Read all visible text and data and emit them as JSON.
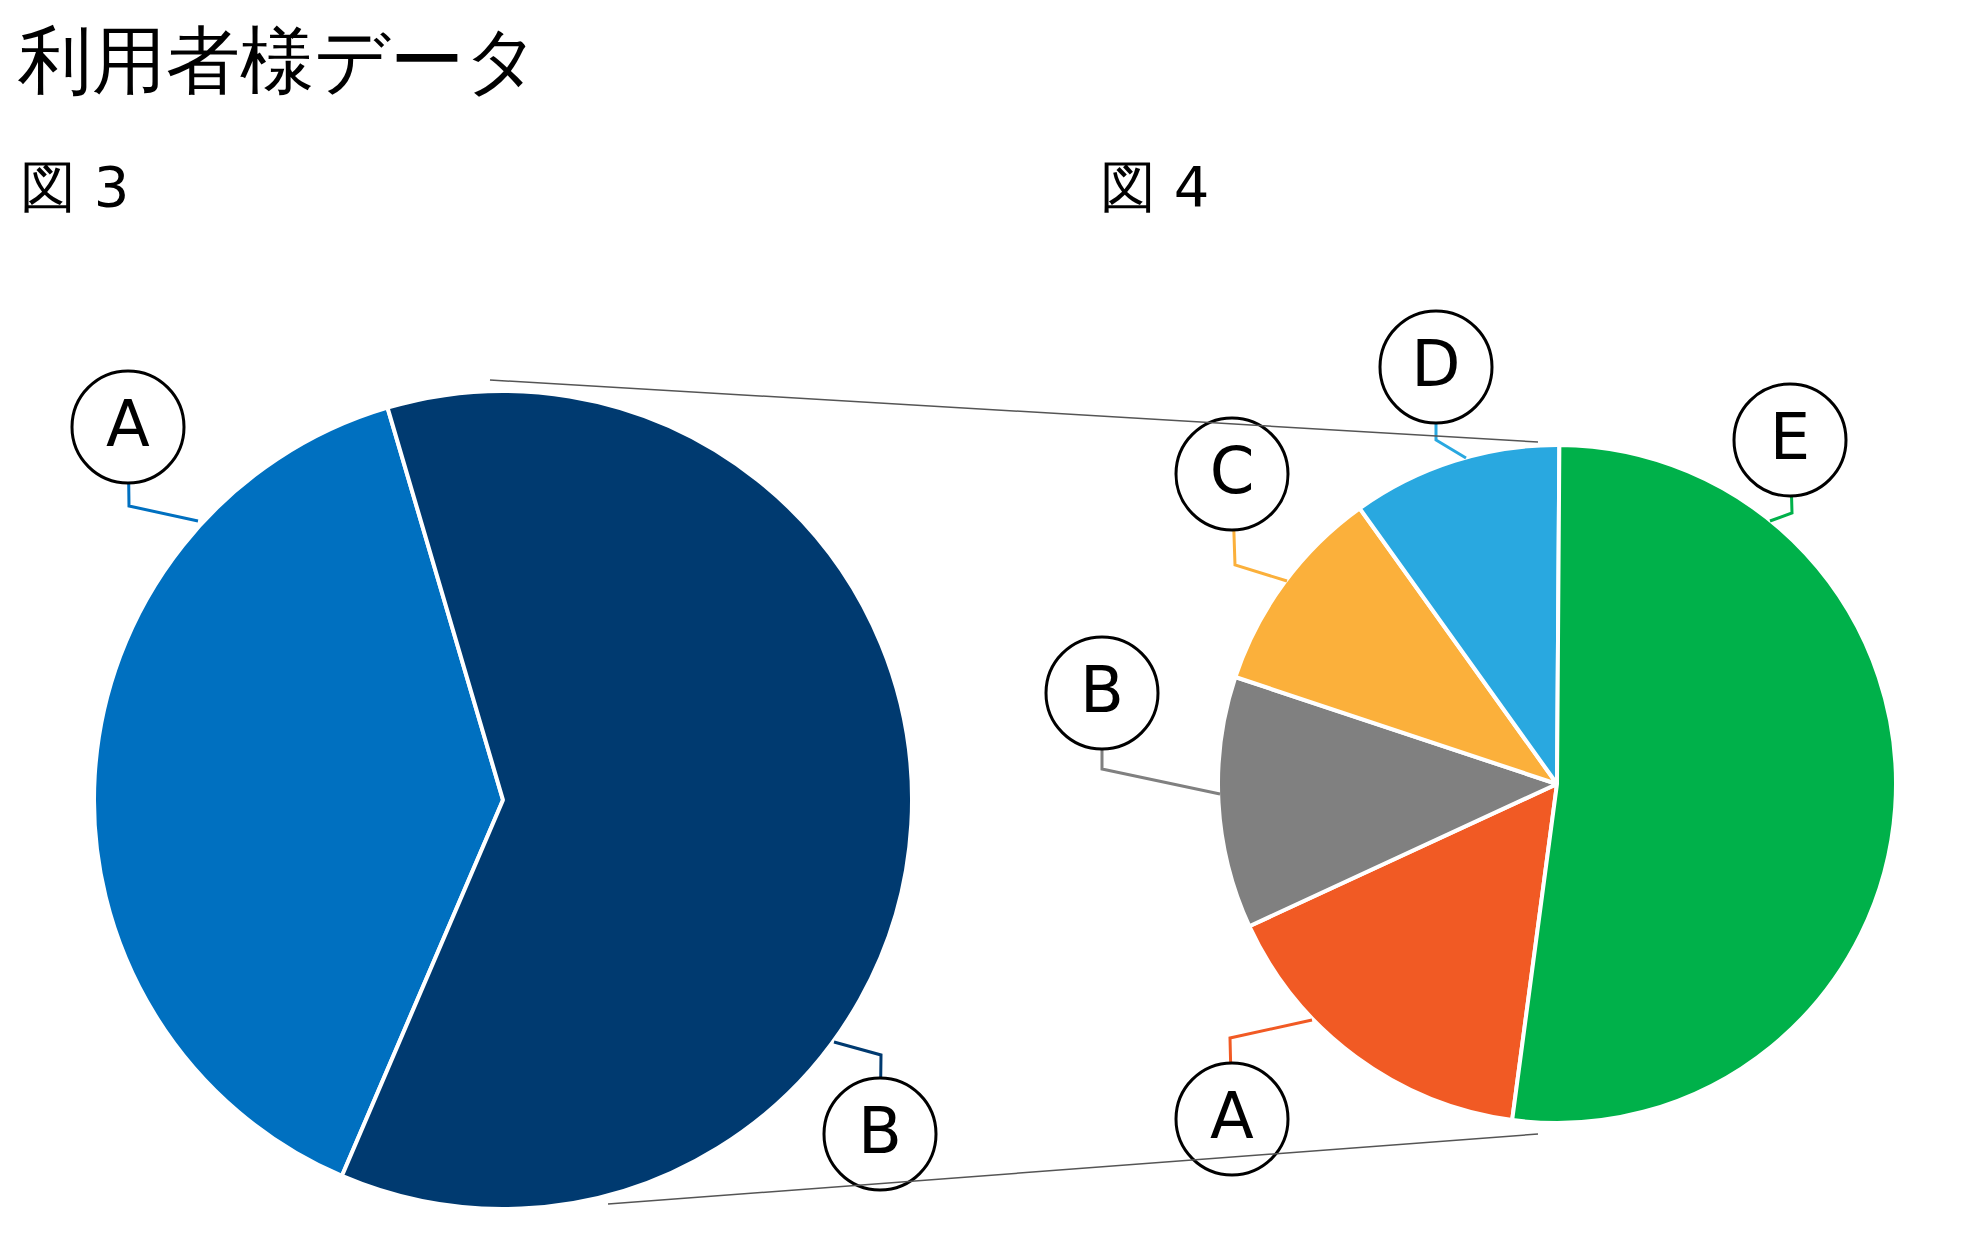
{
  "chart_data": [
    {
      "type": "pie",
      "title": "利用者様データ",
      "subtitle": "図 3",
      "categories": [
        "A",
        "B"
      ],
      "values": [
        39,
        61
      ],
      "colors": [
        "#0070c0",
        "#003a70"
      ],
      "legend": false
    },
    {
      "type": "pie",
      "subtitle": "図 4",
      "categories": [
        "A",
        "B",
        "C",
        "D",
        "E"
      ],
      "values": [
        16,
        12,
        10,
        10,
        52
      ],
      "colors": [
        "#f15a24",
        "#808080",
        "#fbb03b",
        "#29a8e0",
        "#00b14a"
      ],
      "legend": false
    }
  ]
}
